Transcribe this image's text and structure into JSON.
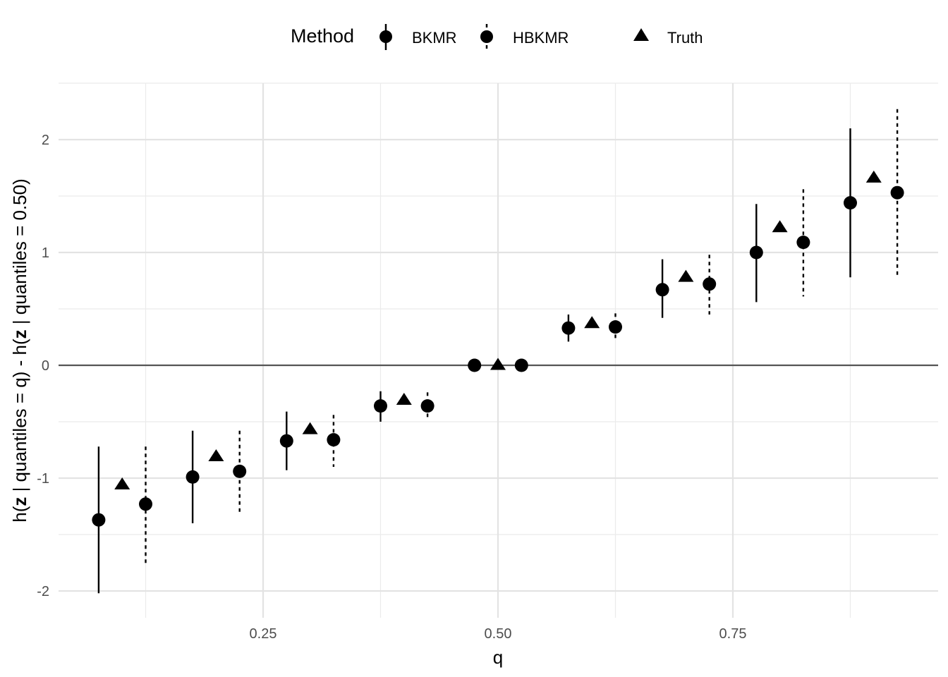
{
  "chart_data": {
    "type": "scatter",
    "title": "",
    "xlabel": "q",
    "ylabel": {
      "prefix": "h(",
      "bold1": "z",
      "middle": " | quantiles = q) - h(",
      "bold2": "z",
      "suffix": " | quantiles = 0.50)"
    },
    "xlim": [
      0.05,
      0.95
    ],
    "ylim": [
      -2.2,
      2.5
    ],
    "x_ticks": [
      0.25,
      0.5,
      0.75
    ],
    "x_tick_labels": [
      "0.25",
      "0.50",
      "0.75"
    ],
    "y_ticks": [
      -2,
      -1,
      0,
      1,
      2
    ],
    "y_tick_labels": [
      "-2",
      "-1",
      "0",
      "1",
      "2"
    ],
    "reference_line_y": 0,
    "grid": true,
    "legend": {
      "title": "Method",
      "position": "top",
      "entries": [
        {
          "label": "BKMR",
          "marker": "circle",
          "line": "solid"
        },
        {
          "label": "HBKMR",
          "marker": "circle",
          "line": "dashed"
        },
        {
          "label": "Truth",
          "marker": "triangle",
          "line": "none"
        }
      ]
    },
    "q": [
      0.1,
      0.2,
      0.3,
      0.4,
      0.5,
      0.6,
      0.7,
      0.8,
      0.9
    ],
    "dodge": 0.025,
    "series": [
      {
        "name": "BKMR",
        "estimate": [
          -1.37,
          -0.99,
          -0.67,
          -0.36,
          0.0,
          0.33,
          0.67,
          1.0,
          1.44
        ],
        "lower": [
          -2.02,
          -1.4,
          -0.93,
          -0.5,
          0.0,
          0.21,
          0.42,
          0.56,
          0.78
        ],
        "upper": [
          -0.72,
          -0.58,
          -0.41,
          -0.23,
          0.0,
          0.45,
          0.94,
          1.43,
          2.1
        ]
      },
      {
        "name": "HBKMR",
        "estimate": [
          -1.23,
          -0.94,
          -0.66,
          -0.36,
          0.0,
          0.34,
          0.72,
          1.09,
          1.53
        ],
        "lower": [
          -1.76,
          -1.3,
          -0.9,
          -0.49,
          0.0,
          0.22,
          0.45,
          0.61,
          0.78
        ],
        "upper": [
          -0.72,
          -0.58,
          -0.44,
          -0.24,
          0.0,
          0.46,
          0.98,
          1.56,
          2.27
        ]
      },
      {
        "name": "Truth",
        "estimate": [
          -1.06,
          -0.81,
          -0.57,
          -0.31,
          0.0,
          0.37,
          0.78,
          1.22,
          1.66
        ]
      }
    ]
  }
}
